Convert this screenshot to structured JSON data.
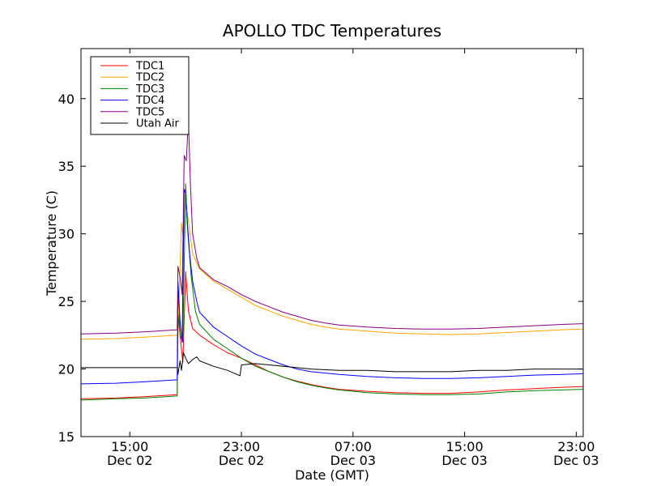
{
  "chart_data": {
    "type": "line",
    "title": "APOLLO TDC Temperatures",
    "xlabel": "Date (GMT)",
    "ylabel": "Temperature (C)",
    "xlim": [
      11.5,
      47.5
    ],
    "ylim": [
      15,
      43.7
    ],
    "x_unit": "hours since Dec 02 00:00 GMT",
    "x_ticks": [
      {
        "value": 15,
        "time": "15:00",
        "date": "Dec 02"
      },
      {
        "value": 23,
        "time": "23:00",
        "date": "Dec 02"
      },
      {
        "value": 31,
        "time": "07:00",
        "date": "Dec 03"
      },
      {
        "value": 39,
        "time": "15:00",
        "date": "Dec 03"
      },
      {
        "value": 47,
        "time": "23:00",
        "date": "Dec 03"
      }
    ],
    "y_ticks": [
      15,
      20,
      25,
      30,
      35,
      40
    ],
    "legend_location": "upper-left",
    "series": [
      {
        "name": "TDC1",
        "color": "#ff0000",
        "points": [
          [
            11.5,
            17.8
          ],
          [
            14,
            17.85
          ],
          [
            16,
            17.95
          ],
          [
            18.4,
            18.1
          ],
          [
            18.45,
            25.8
          ],
          [
            18.6,
            22.5
          ],
          [
            18.8,
            20.5
          ],
          [
            19,
            27.2
          ],
          [
            19.2,
            24.3
          ],
          [
            19.5,
            23
          ],
          [
            20,
            22.5
          ],
          [
            21,
            21.8
          ],
          [
            22,
            21.2
          ],
          [
            23,
            20.8
          ],
          [
            24,
            20.3
          ],
          [
            25,
            19.8
          ],
          [
            26,
            19.4
          ],
          [
            27,
            19.1
          ],
          [
            28,
            18.85
          ],
          [
            29,
            18.65
          ],
          [
            30,
            18.5
          ],
          [
            32,
            18.35
          ],
          [
            34,
            18.25
          ],
          [
            36,
            18.2
          ],
          [
            38,
            18.2
          ],
          [
            40,
            18.3
          ],
          [
            42,
            18.45
          ],
          [
            44,
            18.55
          ],
          [
            46,
            18.65
          ],
          [
            47.5,
            18.7
          ]
        ]
      },
      {
        "name": "TDC2",
        "color": "#ffa500",
        "points": [
          [
            11.5,
            22.2
          ],
          [
            14,
            22.25
          ],
          [
            16,
            22.35
          ],
          [
            18.4,
            22.5
          ],
          [
            18.45,
            22.4
          ],
          [
            18.7,
            30.8
          ],
          [
            18.85,
            29.5
          ],
          [
            19,
            32.2
          ],
          [
            19.2,
            31
          ],
          [
            19.5,
            28.5
          ],
          [
            20,
            27.4
          ],
          [
            21,
            26.5
          ],
          [
            22,
            25.9
          ],
          [
            23,
            25.3
          ],
          [
            24,
            24.7
          ],
          [
            25,
            24.3
          ],
          [
            26,
            23.9
          ],
          [
            27,
            23.6
          ],
          [
            28,
            23.3
          ],
          [
            29,
            23.1
          ],
          [
            30,
            22.95
          ],
          [
            32,
            22.8
          ],
          [
            34,
            22.65
          ],
          [
            36,
            22.6
          ],
          [
            38,
            22.55
          ],
          [
            40,
            22.6
          ],
          [
            42,
            22.7
          ],
          [
            44,
            22.8
          ],
          [
            46,
            22.9
          ],
          [
            47.5,
            22.95
          ]
        ]
      },
      {
        "name": "TDC3",
        "color": "#008000",
        "points": [
          [
            11.5,
            17.7
          ],
          [
            14,
            17.8
          ],
          [
            16,
            17.85
          ],
          [
            18.4,
            18
          ],
          [
            18.45,
            24
          ],
          [
            18.6,
            22.5
          ],
          [
            18.8,
            22
          ],
          [
            19,
            33.7
          ],
          [
            19.1,
            31
          ],
          [
            19.2,
            29.5
          ],
          [
            19.4,
            26.8
          ],
          [
            19.7,
            24.3
          ],
          [
            20,
            23.3
          ],
          [
            21,
            22.2
          ],
          [
            22,
            21.5
          ],
          [
            23,
            20.8
          ],
          [
            24,
            20.2
          ],
          [
            25,
            19.8
          ],
          [
            26,
            19.4
          ],
          [
            27,
            19.05
          ],
          [
            28,
            18.8
          ],
          [
            29,
            18.6
          ],
          [
            30,
            18.45
          ],
          [
            32,
            18.25
          ],
          [
            34,
            18.15
          ],
          [
            36,
            18.1
          ],
          [
            38,
            18.1
          ],
          [
            40,
            18.15
          ],
          [
            42,
            18.3
          ],
          [
            44,
            18.4
          ],
          [
            46,
            18.45
          ],
          [
            47.5,
            18.5
          ]
        ]
      },
      {
        "name": "TDC4",
        "color": "#0000ff",
        "points": [
          [
            11.5,
            18.9
          ],
          [
            14,
            18.95
          ],
          [
            16,
            19.05
          ],
          [
            18.4,
            19.2
          ],
          [
            18.45,
            26.5
          ],
          [
            18.6,
            23.5
          ],
          [
            18.75,
            22
          ],
          [
            18.9,
            33.3
          ],
          [
            19,
            33
          ],
          [
            19.15,
            30.5
          ],
          [
            19.3,
            28.4
          ],
          [
            19.5,
            26.5
          ],
          [
            19.8,
            25
          ],
          [
            20,
            24.2
          ],
          [
            21,
            23.1
          ],
          [
            22,
            22.4
          ],
          [
            23,
            21.7
          ],
          [
            24,
            21.1
          ],
          [
            25,
            20.7
          ],
          [
            26,
            20.3
          ],
          [
            27,
            20
          ],
          [
            28,
            19.8
          ],
          [
            30,
            19.6
          ],
          [
            32,
            19.45
          ],
          [
            34,
            19.35
          ],
          [
            36,
            19.3
          ],
          [
            38,
            19.3
          ],
          [
            40,
            19.35
          ],
          [
            42,
            19.45
          ],
          [
            44,
            19.55
          ],
          [
            46,
            19.6
          ],
          [
            47.5,
            19.65
          ]
        ]
      },
      {
        "name": "TDC5",
        "color": "#800080",
        "points": [
          [
            11.5,
            22.6
          ],
          [
            14,
            22.65
          ],
          [
            16,
            22.75
          ],
          [
            18.4,
            22.9
          ],
          [
            18.45,
            27.6
          ],
          [
            18.6,
            26.8
          ],
          [
            18.75,
            25.5
          ],
          [
            18.9,
            35.8
          ],
          [
            19.05,
            35.4
          ],
          [
            19.2,
            38.4
          ],
          [
            19.35,
            33.5
          ],
          [
            19.5,
            30
          ],
          [
            19.8,
            28.2
          ],
          [
            20,
            27.5
          ],
          [
            21,
            26.6
          ],
          [
            22,
            26.1
          ],
          [
            23,
            25.5
          ],
          [
            24,
            25
          ],
          [
            25,
            24.6
          ],
          [
            26,
            24.2
          ],
          [
            27,
            23.9
          ],
          [
            28,
            23.6
          ],
          [
            29,
            23.4
          ],
          [
            30,
            23.25
          ],
          [
            32,
            23.1
          ],
          [
            34,
            23
          ],
          [
            36,
            22.95
          ],
          [
            38,
            22.95
          ],
          [
            40,
            23
          ],
          [
            42,
            23.1
          ],
          [
            44,
            23.2
          ],
          [
            46,
            23.3
          ],
          [
            47.5,
            23.35
          ]
        ]
      },
      {
        "name": "Utah Air",
        "color": "#000000",
        "points": [
          [
            11.5,
            20.1
          ],
          [
            18.4,
            20.1
          ],
          [
            18.45,
            19.6
          ],
          [
            18.6,
            20.6
          ],
          [
            18.7,
            19.9
          ],
          [
            18.85,
            21.2
          ],
          [
            19,
            20.8
          ],
          [
            19.2,
            20.4
          ],
          [
            19.5,
            20.7
          ],
          [
            19.8,
            20.9
          ],
          [
            20,
            20.6
          ],
          [
            21,
            20.2
          ],
          [
            22,
            19.9
          ],
          [
            22.9,
            19.5
          ],
          [
            23,
            20.3
          ],
          [
            24,
            20.4
          ],
          [
            25,
            20.3
          ],
          [
            26,
            20.2
          ],
          [
            27,
            20.1
          ],
          [
            28,
            20
          ],
          [
            30,
            19.9
          ],
          [
            32,
            19.9
          ],
          [
            34,
            19.8
          ],
          [
            36,
            19.8
          ],
          [
            38,
            19.8
          ],
          [
            40,
            19.9
          ],
          [
            42,
            19.9
          ],
          [
            44,
            20
          ],
          [
            46,
            20
          ],
          [
            47.5,
            20
          ]
        ]
      }
    ]
  }
}
